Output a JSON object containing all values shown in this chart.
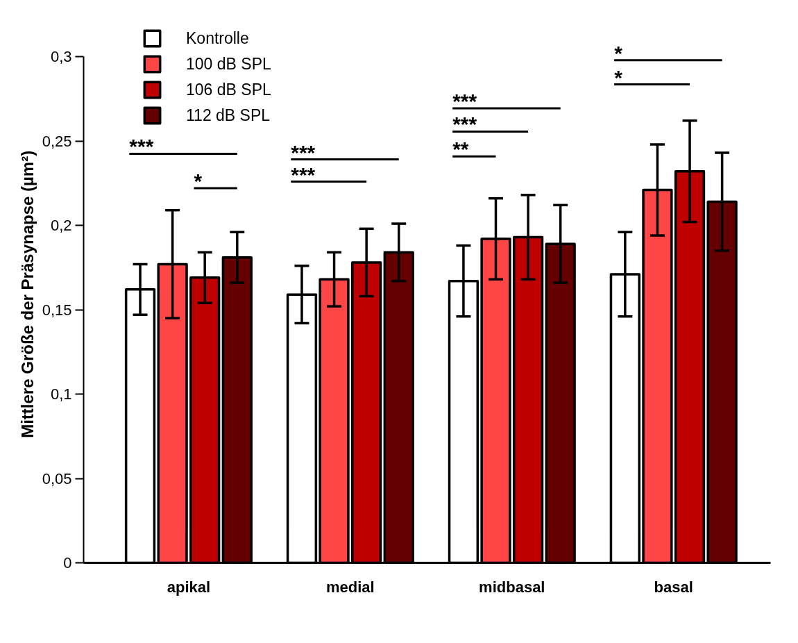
{
  "chart_data": {
    "type": "bar",
    "ylabel": "Mittlere Größe der Präsynapse  (µm²)",
    "categories": [
      "apikal",
      "medial",
      "midbasal",
      "basal"
    ],
    "series": [
      {
        "name": "Kontrolle",
        "color": "#ffffff",
        "values": [
          0.162,
          0.159,
          0.167,
          0.171
        ],
        "errors": [
          0.015,
          0.017,
          0.021,
          0.025
        ]
      },
      {
        "name": "100 dB SPL",
        "color": "#ff4646",
        "values": [
          0.177,
          0.168,
          0.192,
          0.221
        ],
        "errors": [
          0.032,
          0.016,
          0.024,
          0.027
        ]
      },
      {
        "name": "106 dB SPL",
        "color": "#be0000",
        "values": [
          0.169,
          0.178,
          0.193,
          0.232
        ],
        "errors": [
          0.015,
          0.02,
          0.025,
          0.03
        ]
      },
      {
        "name": "112 dB SPL",
        "color": "#640000",
        "values": [
          0.181,
          0.184,
          0.189,
          0.214
        ],
        "errors": [
          0.015,
          0.017,
          0.023,
          0.029
        ]
      }
    ],
    "ylim": [
      0,
      0.3
    ],
    "yticks": [
      {
        "value": 0,
        "label": "0"
      },
      {
        "value": 0.05,
        "label": "0,05"
      },
      {
        "value": 0.1,
        "label": "0,1"
      },
      {
        "value": 0.15,
        "label": "0,15"
      },
      {
        "value": 0.2,
        "label": "0,2"
      },
      {
        "value": 0.25,
        "label": "0,25"
      },
      {
        "value": 0.3,
        "label": "0,3"
      }
    ],
    "grid": false,
    "legend": "top left",
    "annotations": [
      "***",
      "*",
      "***",
      "***",
      "***",
      "***",
      "**",
      "*",
      "*"
    ]
  }
}
